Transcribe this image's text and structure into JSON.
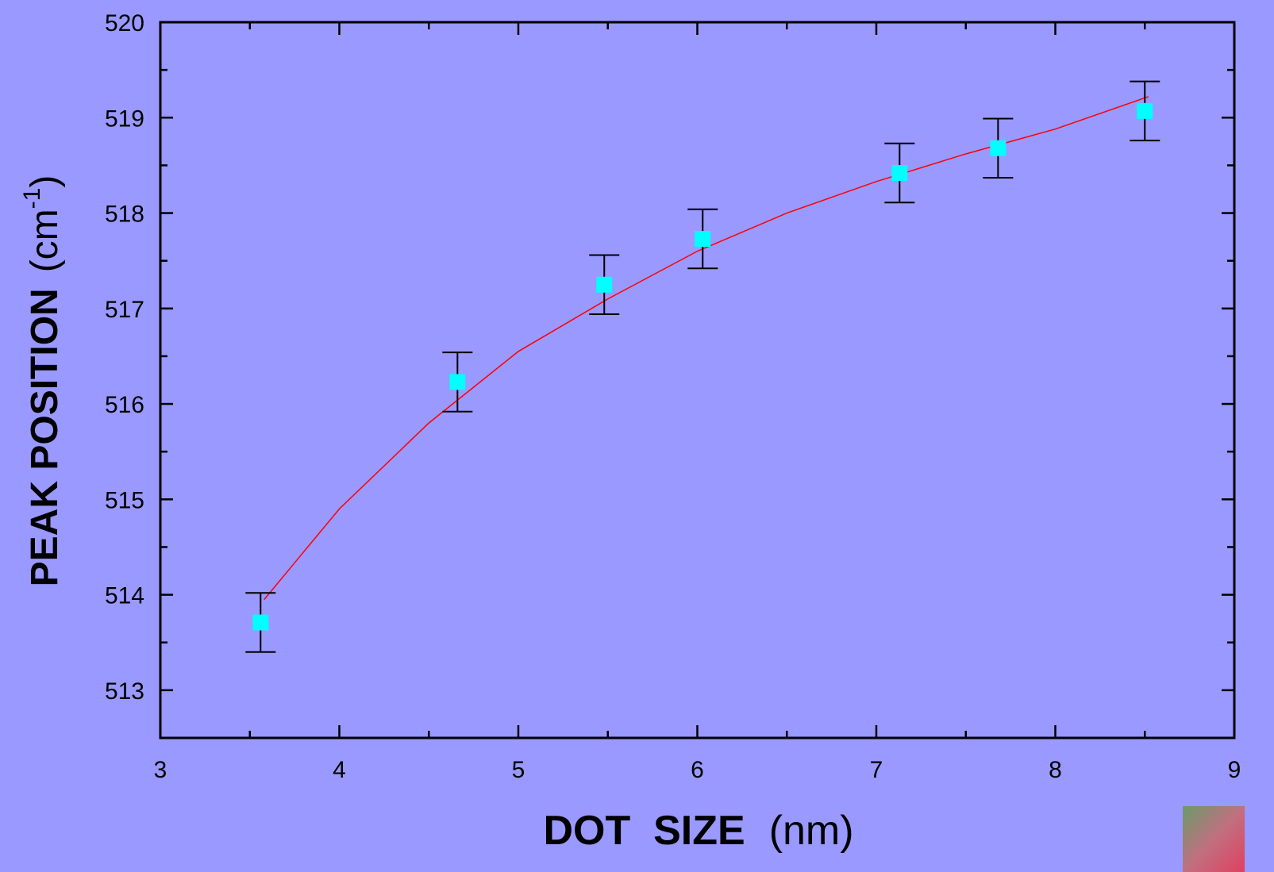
{
  "chart_data": {
    "type": "scatter",
    "x_label": "DOT  SIZE",
    "x_unit": "(nm)",
    "y_label": "PEAK POSITION",
    "y_unit": "(cm",
    "y_unit_sup": "-1",
    "y_unit_close": ")",
    "series": [
      {
        "x": [
          3.56,
          4.66,
          5.48,
          6.03,
          7.13,
          7.68,
          8.5
        ],
        "values": [
          513.71,
          516.23,
          517.25,
          517.73,
          518.42,
          518.68,
          519.07
        ],
        "errors": [
          0.31,
          0.31,
          0.31,
          0.31,
          0.31,
          0.31,
          0.31
        ],
        "color": "#00ffff",
        "error_color": "#000000"
      }
    ],
    "fit": {
      "x": [
        3.58,
        4.0,
        4.5,
        5.0,
        5.5,
        6.0,
        6.5,
        7.0,
        7.5,
        8.0,
        8.52
      ],
      "values": [
        513.95,
        514.9,
        515.8,
        516.55,
        517.1,
        517.6,
        518.0,
        518.33,
        518.62,
        518.88,
        519.22
      ],
      "color": "#ff0000"
    },
    "xlim": [
      3,
      9
    ],
    "xticks": [
      3,
      4,
      5,
      6,
      7,
      8,
      9
    ],
    "xminorticks": [
      3.5,
      4.5,
      5.5,
      6.5,
      7.5,
      8.5
    ],
    "ylim": [
      512.5,
      520
    ],
    "yticks": [
      513,
      514,
      515,
      516,
      517,
      518,
      519,
      520
    ],
    "yminorticks": [
      512.5,
      513.5,
      514.5,
      515.5,
      516.5,
      517.5,
      518.5,
      519.5
    ]
  }
}
